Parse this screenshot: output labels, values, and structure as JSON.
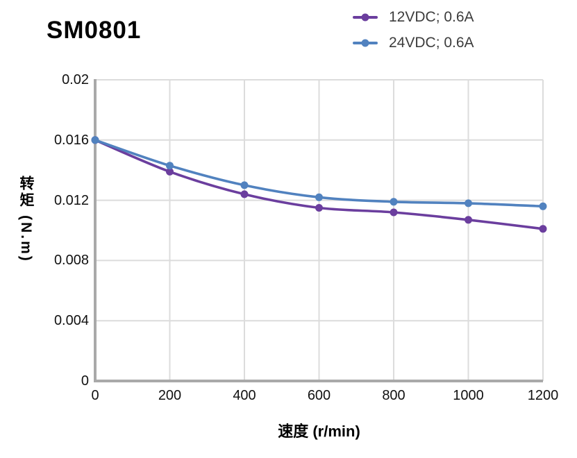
{
  "chart_data": {
    "type": "line",
    "title": "SM0801",
    "xlabel": "速度 (r/min)",
    "ylabel": "转矩 (N.m)",
    "x": [
      0,
      200,
      400,
      600,
      800,
      1000,
      1200
    ],
    "series": [
      {
        "name": "12VDC; 0.6A",
        "color": "#6B3E9E",
        "values": [
          0.016,
          0.0139,
          0.0124,
          0.0115,
          0.0112,
          0.0107,
          0.0101
        ]
      },
      {
        "name": "24VDC; 0.6A",
        "color": "#5182BF",
        "values": [
          0.016,
          0.0143,
          0.013,
          0.0122,
          0.0119,
          0.0118,
          0.0116
        ]
      }
    ],
    "xlim": [
      0,
      1200
    ],
    "ylim": [
      0,
      0.02
    ],
    "x_ticks": [
      0,
      200,
      400,
      600,
      800,
      1000,
      1200
    ],
    "x_tick_labels": [
      "0",
      "200",
      "400",
      "600",
      "800",
      "1000",
      "1200"
    ],
    "y_ticks": [
      0,
      0.004,
      0.008,
      0.012,
      0.016,
      0.02
    ],
    "y_tick_labels": [
      "0",
      "0.004",
      "0.008",
      "0.012",
      "0.016",
      "0.02"
    ],
    "grid": true,
    "grid_color": "#dcdcdc",
    "axis_color": "#a9a9a9",
    "legend_position": "top-right",
    "marker": "circle"
  }
}
